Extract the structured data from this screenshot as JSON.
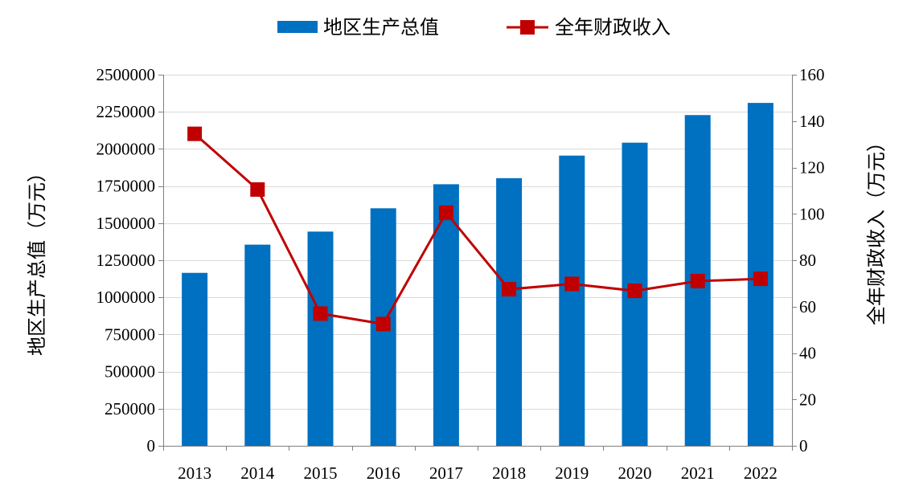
{
  "chart_data": {
    "type": "bar+line",
    "categories": [
      "2013",
      "2014",
      "2015",
      "2016",
      "2017",
      "2018",
      "2019",
      "2020",
      "2021",
      "2022"
    ],
    "series": [
      {
        "name": "地区生产总值",
        "type": "bar",
        "axis": "left",
        "color": "#0070C0",
        "values": [
          1165000,
          1355000,
          1443000,
          1600000,
          1762000,
          1803000,
          1955000,
          2042000,
          2228000,
          2310000
        ]
      },
      {
        "name": "全年财政收入",
        "type": "line",
        "axis": "right",
        "color": "#C00000",
        "values": [
          134.5,
          110.5,
          57.0,
          52.5,
          100.5,
          67.5,
          69.8,
          66.8,
          71.0,
          72.0
        ]
      }
    ],
    "y_left": {
      "label": "地区生产总值（万元）",
      "lim": [
        0,
        2500000
      ],
      "ticks": [
        "0",
        "250000",
        "500000",
        "750000",
        "1000000",
        "1250000",
        "1500000",
        "1750000",
        "2000000",
        "2250000",
        "2500000"
      ]
    },
    "y_right": {
      "label": "全年财政收入（万元）",
      "lim": [
        0,
        160
      ],
      "ticks": [
        "0",
        "20",
        "40",
        "60",
        "80",
        "100",
        "120",
        "140",
        "160"
      ]
    },
    "grid": true,
    "legend": "top-center"
  }
}
